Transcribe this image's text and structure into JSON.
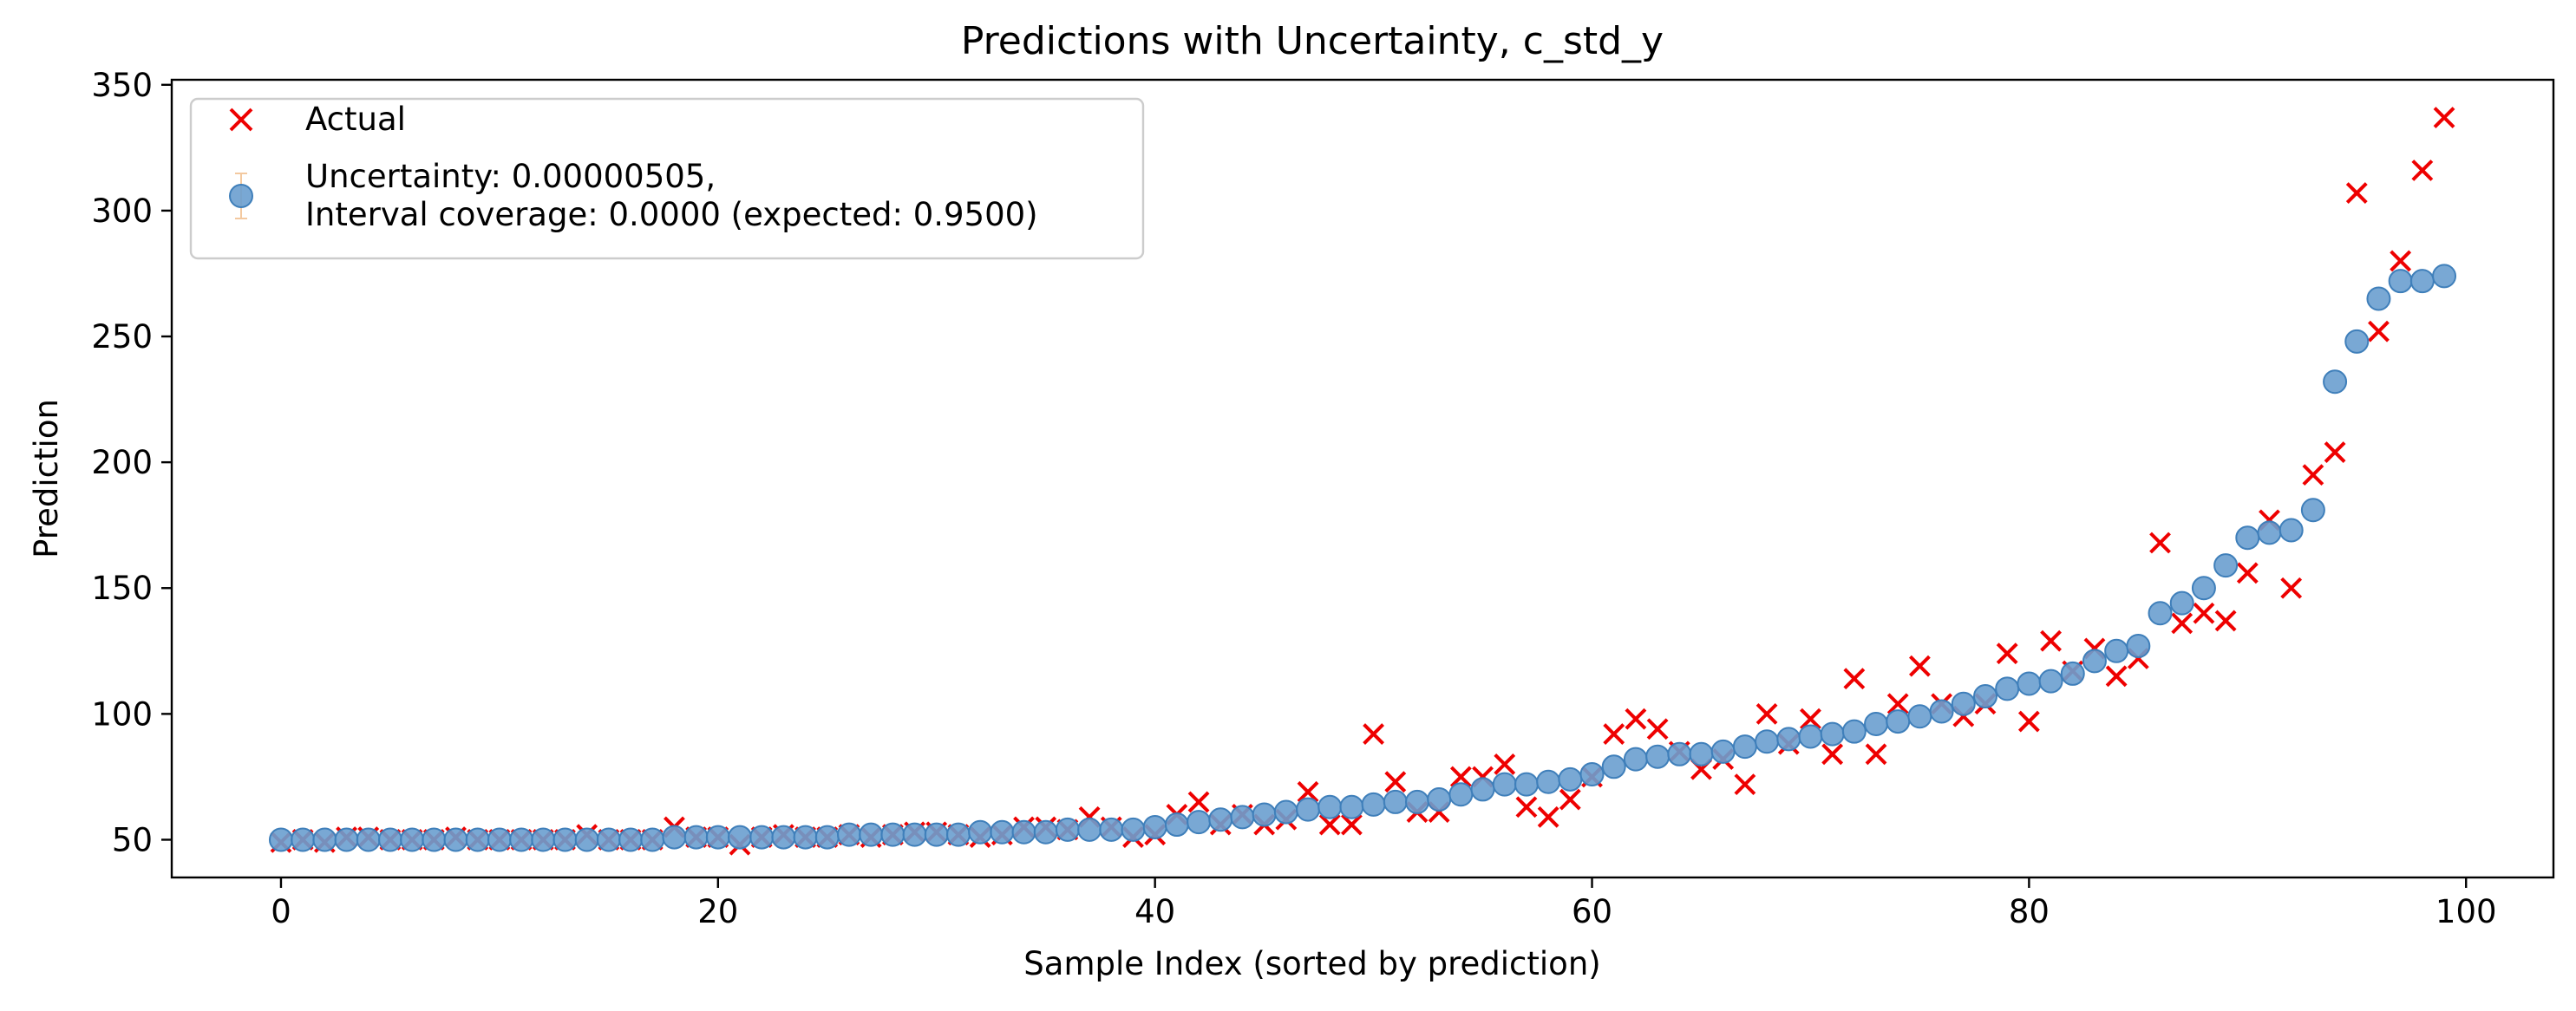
{
  "chart_data": {
    "type": "scatter",
    "title": "Predictions with Uncertainty, c_std_y",
    "xlabel": "Sample Index (sorted by prediction)",
    "ylabel": "Prediction",
    "xlim": [
      -5,
      104
    ],
    "ylim": [
      35,
      352
    ],
    "x_ticks": [
      0,
      20,
      40,
      60,
      80,
      100
    ],
    "y_ticks": [
      50,
      100,
      150,
      200,
      250,
      300,
      350
    ],
    "grid": false,
    "legend_position": "upper-left",
    "colors": {
      "actual": "#ee0000",
      "prediction_fill": "#6a9fcf",
      "prediction_edge": "#3f7fba",
      "errorbar": "#f3c9a0"
    },
    "legend": [
      {
        "series": "actual",
        "marker": "x",
        "text_lines": [
          "Actual"
        ]
      },
      {
        "series": "prediction",
        "marker": "circle-errorbar",
        "text_lines": [
          "Uncertainty: 0.00000505,",
          "Interval coverage: 0.0000 (expected: 0.9500)"
        ]
      }
    ],
    "series": [
      {
        "name": "Actual",
        "key": "actual",
        "marker": "x",
        "x": [
          0,
          1,
          2,
          3,
          4,
          5,
          6,
          7,
          8,
          9,
          10,
          11,
          12,
          13,
          14,
          15,
          16,
          17,
          18,
          19,
          20,
          21,
          22,
          23,
          24,
          25,
          26,
          27,
          28,
          29,
          30,
          31,
          32,
          33,
          34,
          35,
          36,
          37,
          38,
          39,
          40,
          41,
          42,
          43,
          44,
          45,
          46,
          47,
          48,
          49,
          50,
          51,
          52,
          53,
          54,
          55,
          56,
          57,
          58,
          59,
          60,
          61,
          62,
          63,
          64,
          65,
          66,
          67,
          68,
          69,
          70,
          71,
          72,
          73,
          74,
          75,
          76,
          77,
          78,
          79,
          80,
          81,
          82,
          83,
          84,
          85,
          86,
          87,
          88,
          89,
          90,
          91,
          92,
          93,
          94,
          95,
          96,
          97,
          98,
          99
        ],
        "y": [
          49,
          50,
          49,
          51,
          51,
          50,
          50,
          50,
          51,
          50,
          50,
          50,
          50,
          50,
          52,
          50,
          50,
          50,
          55,
          51,
          51,
          48,
          51,
          52,
          51,
          51,
          52,
          51,
          52,
          53,
          53,
          52,
          51,
          52,
          55,
          55,
          54,
          59,
          55,
          51,
          52,
          60,
          65,
          56,
          60,
          56,
          58,
          69,
          56,
          56,
          92,
          73,
          61,
          61,
          75,
          75,
          80,
          63,
          59,
          66,
          75,
          92,
          98,
          94,
          85,
          78,
          82,
          72,
          100,
          88,
          98,
          84,
          114,
          84,
          104,
          119,
          104,
          99,
          104,
          124,
          97,
          129,
          117,
          126,
          115,
          122,
          168,
          136,
          140,
          137,
          156,
          177,
          150,
          195,
          204,
          307,
          252,
          280,
          316,
          337
        ]
      },
      {
        "name": "Uncertainty: 0.00000505,\nInterval coverage: 0.0000 (expected: 0.9500)",
        "key": "prediction",
        "marker": "circle",
        "x": [
          0,
          1,
          2,
          3,
          4,
          5,
          6,
          7,
          8,
          9,
          10,
          11,
          12,
          13,
          14,
          15,
          16,
          17,
          18,
          19,
          20,
          21,
          22,
          23,
          24,
          25,
          26,
          27,
          28,
          29,
          30,
          31,
          32,
          33,
          34,
          35,
          36,
          37,
          38,
          39,
          40,
          41,
          42,
          43,
          44,
          45,
          46,
          47,
          48,
          49,
          50,
          51,
          52,
          53,
          54,
          55,
          56,
          57,
          58,
          59,
          60,
          61,
          62,
          63,
          64,
          65,
          66,
          67,
          68,
          69,
          70,
          71,
          72,
          73,
          74,
          75,
          76,
          77,
          78,
          79,
          80,
          81,
          82,
          83,
          84,
          85,
          86,
          87,
          88,
          89,
          90,
          91,
          92,
          93,
          94,
          95,
          96,
          97,
          98,
          99
        ],
        "y": [
          50,
          50,
          50,
          50,
          50,
          50,
          50,
          50,
          50,
          50,
          50,
          50,
          50,
          50,
          50,
          50,
          50,
          50,
          51,
          51,
          51,
          51,
          51,
          51,
          51,
          51,
          52,
          52,
          52,
          52,
          52,
          52,
          53,
          53,
          53,
          53,
          54,
          54,
          54,
          54,
          55,
          56,
          57,
          58,
          59,
          60,
          61,
          62,
          63,
          63,
          64,
          65,
          65,
          66,
          68,
          70,
          72,
          72,
          73,
          74,
          76,
          79,
          82,
          83,
          84,
          84,
          85,
          87,
          89,
          90,
          91,
          92,
          93,
          96,
          97,
          99,
          101,
          104,
          107,
          110,
          112,
          113,
          116,
          121,
          125,
          127,
          140,
          144,
          150,
          159,
          170,
          172,
          173,
          181,
          232,
          248,
          265,
          272,
          272,
          274
        ]
      }
    ]
  }
}
